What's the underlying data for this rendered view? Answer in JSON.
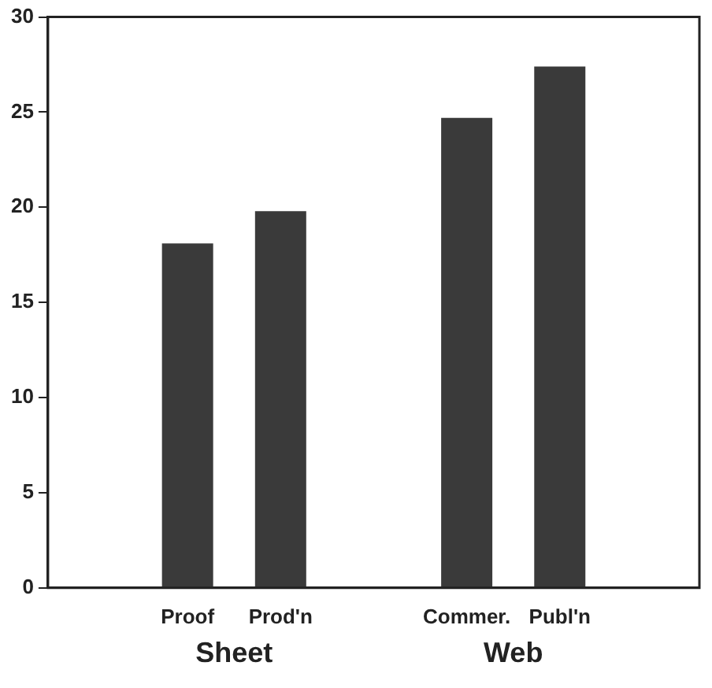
{
  "chart_data": {
    "type": "bar",
    "categories": [
      null,
      "Proof",
      "Prod'n",
      null,
      "Commer.",
      "Publ'n",
      null
    ],
    "values": [
      null,
      18.1,
      19.8,
      null,
      24.7,
      27.4,
      null
    ],
    "color": "#3a3a3a",
    "ylim": [
      0,
      30
    ],
    "yticks": [
      0,
      5,
      10,
      15,
      20,
      25,
      30
    ],
    "annotations": [
      "Sheet",
      "Web"
    ],
    "legend": false
  }
}
